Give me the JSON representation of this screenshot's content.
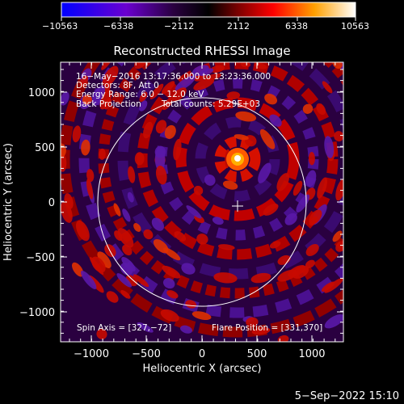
{
  "colorbar": {
    "ticks": [
      "−10563",
      "−6338",
      "−2112",
      "2112",
      "6338",
      "10563"
    ],
    "min": -10563,
    "max": 10563
  },
  "title": "Reconstructed RHESSI Image",
  "info": {
    "line1": "16−May−2016 13:17:36.000 to 13:23:36.000",
    "line2": "Detectors: 8F, Att 0",
    "line3": "Energy Range: 6.0 − 12.0 keV",
    "line4a": "Back Projection",
    "line4b": "Total counts: 5.29E+03"
  },
  "footer": {
    "spin_axis": "Spin Axis = [327,−72]",
    "flare_position": "Flare Position = [331,370]"
  },
  "axes": {
    "xlabel": "Heliocentric X (arcsec)",
    "ylabel": "Heliocentric Y (arcsec)",
    "xticks": [
      "−1000",
      "−500",
      "0",
      "500",
      "1000"
    ],
    "yticks": [
      "1000",
      "500",
      "0",
      "−500",
      "−1000"
    ],
    "xrange": [
      -1300,
      1300
    ],
    "yrange": [
      -1100,
      1300
    ]
  },
  "timestamp": "5−Sep−2022 15:10",
  "chart_data": {
    "type": "heatmap",
    "title": "Reconstructed RHESSI Image",
    "xlabel": "Heliocentric X (arcsec)",
    "ylabel": "Heliocentric Y (arcsec)",
    "xlim": [
      -1300,
      1300
    ],
    "ylim": [
      -1100,
      1300
    ],
    "color_range": [
      -10563,
      10563
    ],
    "solar_limb_radius_arcsec": 950,
    "source_peak": [
      331,
      370
    ],
    "spin_axis_marker": [
      327,
      -72
    ],
    "colors": {
      "background": "#000000",
      "limb": "#ffffff",
      "text": "#ffffff"
    }
  }
}
